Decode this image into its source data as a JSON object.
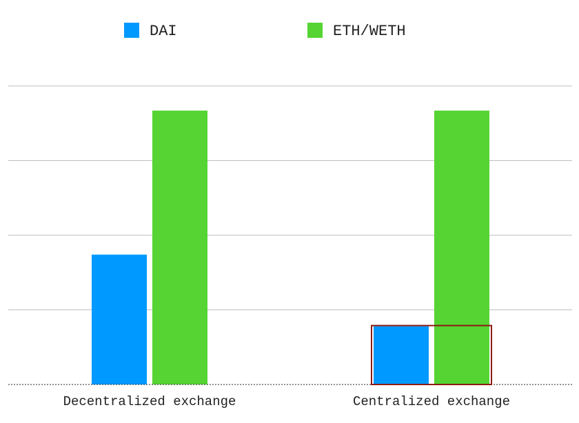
{
  "chart_data": {
    "type": "bar",
    "title": "",
    "xlabel": "",
    "ylabel": "",
    "categories": [
      "Decentralized exchange",
      "Centralized exchange"
    ],
    "series": [
      {
        "name": "DAI",
        "color": "#0099ff",
        "values": [
          1.74,
          0.78
        ]
      },
      {
        "name": "ETH/WETH",
        "color": "#55d433",
        "values": [
          3.67,
          3.67
        ]
      }
    ],
    "ylim": [
      0,
      4
    ],
    "grid": true,
    "legend": "top",
    "highlight": {
      "category": "Centralized exchange",
      "color": "#8b1a10"
    }
  }
}
